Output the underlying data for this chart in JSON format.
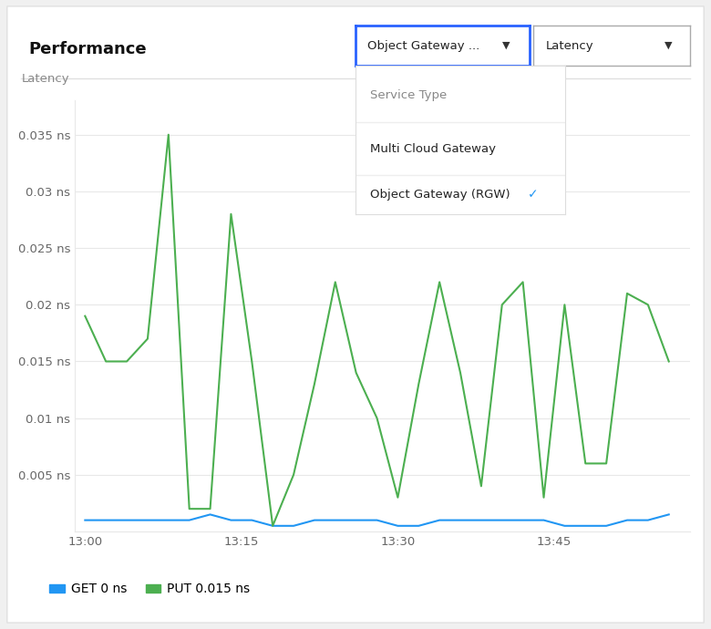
{
  "title": "Performance",
  "ylabel": "Latency",
  "ylim": [
    0,
    0.038
  ],
  "yticks": [
    0.005,
    0.01,
    0.015,
    0.02,
    0.025,
    0.03,
    0.035
  ],
  "ytick_labels": [
    "0.005 ns",
    "0.01 ns",
    "0.015 ns",
    "0.02 ns",
    "0.025 ns",
    "0.03 ns",
    "0.035 ns"
  ],
  "xtick_labels": [
    "13:00",
    "13:15",
    "13:30",
    "13:45"
  ],
  "xtick_positions": [
    0,
    15,
    30,
    45
  ],
  "xlim": [
    -1,
    58
  ],
  "get_color": "#2196F3",
  "put_color": "#4CAF50",
  "background_color": "#ffffff",
  "legend_get_label": "GET 0 ns",
  "legend_put_label": "PUT 0.015 ns",
  "dropdown1_text": "Object Gateway ...",
  "dropdown2_text": "Latency",
  "dropdown_label": "Service Type",
  "dropdown_item1": "Multi Cloud Gateway",
  "dropdown_item2": "Object Gateway (RGW)",
  "get_x": [
    0,
    2,
    4,
    6,
    8,
    10,
    12,
    14,
    16,
    18,
    20,
    22,
    24,
    26,
    28,
    30,
    32,
    34,
    36,
    38,
    40,
    42,
    44,
    46,
    48,
    50,
    52,
    54,
    56
  ],
  "get_y": [
    0.001,
    0.001,
    0.001,
    0.001,
    0.001,
    0.001,
    0.0015,
    0.001,
    0.001,
    0.0005,
    0.0005,
    0.001,
    0.001,
    0.001,
    0.001,
    0.0005,
    0.0005,
    0.001,
    0.001,
    0.001,
    0.001,
    0.001,
    0.001,
    0.0005,
    0.0005,
    0.0005,
    0.001,
    0.001,
    0.0015
  ],
  "put_x": [
    0,
    2,
    4,
    6,
    8,
    10,
    12,
    14,
    16,
    18,
    20,
    22,
    24,
    26,
    28,
    30,
    32,
    34,
    36,
    38,
    40,
    42,
    44,
    46,
    48,
    50,
    52,
    54,
    56
  ],
  "put_y": [
    0.019,
    0.015,
    0.015,
    0.017,
    0.035,
    0.002,
    0.002,
    0.028,
    0.015,
    0.0005,
    0.005,
    0.013,
    0.022,
    0.014,
    0.01,
    0.003,
    0.013,
    0.022,
    0.014,
    0.004,
    0.02,
    0.022,
    0.003,
    0.02,
    0.006,
    0.006,
    0.021,
    0.02,
    0.015
  ],
  "outer_bg": "#f0f0f0",
  "card_bg": "#ffffff",
  "header_sep_color": "#e0e0e0",
  "grid_color": "#e8e8e8",
  "tick_color": "#666666",
  "ylabel_color": "#888888",
  "title_color": "#111111",
  "dropdown1_border": "#2962ff",
  "dropdown2_border": "#aaaaaa",
  "menu_border": "#dddddd",
  "menu_shadow": "#cccccc"
}
